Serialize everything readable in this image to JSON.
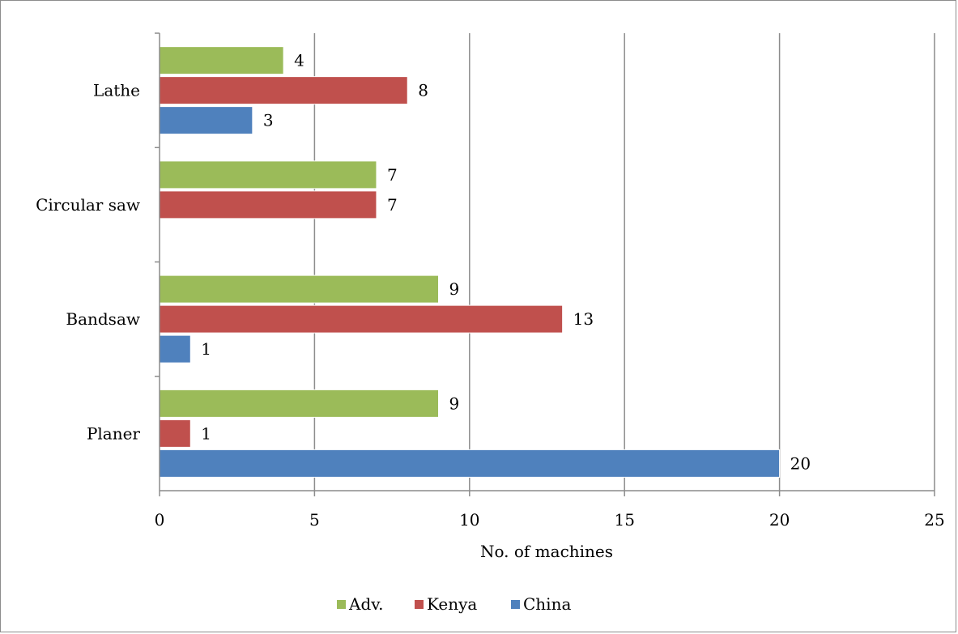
{
  "chart_data": {
    "type": "bar",
    "orientation": "horizontal",
    "title": "",
    "xlabel": "No. of machines",
    "ylabel": "",
    "xlim": [
      0,
      25
    ],
    "xticks": [
      0,
      5,
      10,
      15,
      20,
      25
    ],
    "grid": "vertical",
    "legend_position": "bottom",
    "categories": [
      "Lathe",
      "Circular saw",
      "Bandsaw",
      "Planer"
    ],
    "series": [
      {
        "name": "Adv.",
        "color": "#9bbb59",
        "values": [
          4,
          7,
          9,
          9
        ]
      },
      {
        "name": "Kenya",
        "color": "#c0504d",
        "values": [
          8,
          7,
          13,
          1
        ]
      },
      {
        "name": "China",
        "color": "#4f81bd",
        "values": [
          3,
          null,
          1,
          20
        ]
      }
    ]
  }
}
